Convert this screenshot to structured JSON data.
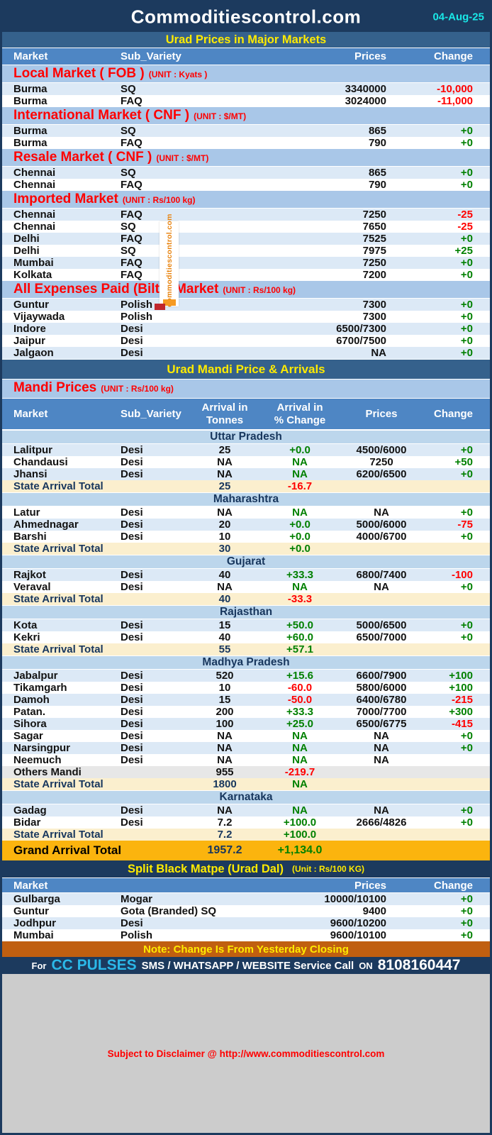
{
  "header": {
    "title": "Commoditiescontrol.com",
    "date": "04-Aug-25"
  },
  "colors": {
    "navy": "#1C3A5E",
    "band": "#35618C",
    "colhdr": "#4E86C4",
    "secbg": "#A9C7E8",
    "stateband": "#BCD6EC",
    "rowalt": "#DCE9F6",
    "cream": "#FBEFCE",
    "grayrow": "#E7E7E7",
    "amber": "#FBB40E",
    "noteband": "#C05F10",
    "graybar": "#CCCCCC",
    "yellow": "#FFEB00",
    "cyan": "#19E8E8",
    "cyan2": "#2BB8E8",
    "pos": "#008000",
    "neg": "#FF0000",
    "navytxt": "#17365D",
    "wmorange": "#E8820C"
  },
  "watermark": {
    "text": "commoditiescontrol.com"
  },
  "major_markets": {
    "title": "Urad Prices in Major Markets",
    "columns": {
      "market": "Market",
      "variety": "Sub_Variety",
      "prices": "Prices",
      "change": "Change"
    },
    "sections": [
      {
        "name": "Local Market ( FOB )",
        "unit": "(UNIT : Kyats )",
        "rows": [
          {
            "market": "Burma",
            "variety": "SQ",
            "price": "3340000",
            "change": "-10,000",
            "dir": "down"
          },
          {
            "market": "Burma",
            "variety": "FAQ",
            "price": "3024000",
            "change": "-11,000",
            "dir": "down"
          }
        ]
      },
      {
        "name": "International Market ( CNF )",
        "unit": "(UNIT : $/MT)",
        "rows": [
          {
            "market": "Burma",
            "variety": "SQ",
            "price": "865",
            "change": "+0",
            "dir": "up"
          },
          {
            "market": "Burma",
            "variety": "FAQ",
            "price": "790",
            "change": "+0",
            "dir": "up"
          }
        ]
      },
      {
        "name": "Resale Market  ( CNF )",
        "unit": "(UNIT : $/MT)",
        "rows": [
          {
            "market": "Chennai",
            "variety": "SQ",
            "price": "865",
            "change": "+0",
            "dir": "up"
          },
          {
            "market": "Chennai",
            "variety": "FAQ",
            "price": "790",
            "change": "+0",
            "dir": "up"
          }
        ]
      },
      {
        "name": "Imported Market",
        "unit": "(UNIT : Rs/100 kg)",
        "rows": [
          {
            "market": "Chennai",
            "variety": "FAQ",
            "price": "7250",
            "change": "-25",
            "dir": "down"
          },
          {
            "market": "Chennai",
            "variety": "SQ",
            "price": "7650",
            "change": "-25",
            "dir": "down"
          },
          {
            "market": "Delhi",
            "variety": "FAQ",
            "price": "7525",
            "change": "+0",
            "dir": "up"
          },
          {
            "market": "Delhi",
            "variety": "SQ",
            "price": "7975",
            "change": "+25",
            "dir": "up"
          },
          {
            "market": "Mumbai",
            "variety": "FAQ",
            "price": "7250",
            "change": "+0",
            "dir": "up"
          },
          {
            "market": "Kolkata",
            "variety": "FAQ",
            "price": "7200",
            "change": "+0",
            "dir": "up"
          }
        ]
      },
      {
        "name": "All Expenses Paid (Bilty) Market",
        "unit": "(UNIT : Rs/100 kg)",
        "rows": [
          {
            "market": "Guntur",
            "variety": "Polish",
            "price": "7300",
            "change": "+0",
            "dir": "up"
          },
          {
            "market": "Vijaywada",
            "variety": "Polish",
            "price": "7300",
            "change": "+0",
            "dir": "up"
          },
          {
            "market": "Indore",
            "variety": "Desi",
            "price": "6500/7300",
            "change": "+0",
            "dir": "up"
          },
          {
            "market": "Jaipur",
            "variety": "Desi",
            "price": "6700/7500",
            "change": "+0",
            "dir": "up"
          },
          {
            "market": "Jalgaon",
            "variety": "Desi",
            "price": "NA",
            "change": "+0",
            "dir": "up"
          }
        ]
      }
    ]
  },
  "mandi": {
    "band_title": "Urad Mandi Price & Arrivals",
    "section_title": "Mandi Prices",
    "unit": "(UNIT : Rs/100 kg)",
    "columns": {
      "market": "Market",
      "variety": "Sub_Variety",
      "arrival_l1": "Arrival in",
      "arrival_l2": "Tonnes",
      "pct_l1": "Arrival  in",
      "pct_l2": "% Change",
      "prices": "Prices",
      "change": "Change"
    },
    "states": [
      {
        "name": "Uttar Pradesh",
        "rows": [
          {
            "market": "Lalitpur",
            "variety": "Desi",
            "arrival": "25",
            "arrival_pct": "+0.0",
            "pct_dir": "up",
            "price": "4500/6000",
            "change": "+0",
            "dir": "up"
          },
          {
            "market": "Chandausi",
            "variety": "Desi",
            "arrival": "NA",
            "arrival_pct": "NA",
            "pct_dir": "up",
            "price": "7250",
            "change": "+50",
            "dir": "up"
          },
          {
            "market": "Jhansi",
            "variety": "Desi",
            "arrival": "NA",
            "arrival_pct": "NA",
            "pct_dir": "up",
            "price": "6200/6500",
            "change": "+0",
            "dir": "up"
          }
        ],
        "total": {
          "label": "State Arrival Total",
          "arrival": "25",
          "arrival_pct": "-16.7",
          "pct_dir": "down"
        }
      },
      {
        "name": "Maharashtra",
        "rows": [
          {
            "market": "Latur",
            "variety": "Desi",
            "arrival": "NA",
            "arrival_pct": "NA",
            "pct_dir": "up",
            "price": "NA",
            "change": "+0",
            "dir": "up"
          },
          {
            "market": "Ahmednagar",
            "variety": "Desi",
            "arrival": "20",
            "arrival_pct": "+0.0",
            "pct_dir": "up",
            "price": "5000/6000",
            "change": "-75",
            "dir": "down"
          },
          {
            "market": "Barshi",
            "variety": "Desi",
            "arrival": "10",
            "arrival_pct": "+0.0",
            "pct_dir": "up",
            "price": "4000/6700",
            "change": "+0",
            "dir": "up"
          }
        ],
        "total": {
          "label": "State Arrival Total",
          "arrival": "30",
          "arrival_pct": "+0.0",
          "pct_dir": "up"
        }
      },
      {
        "name": "Gujarat",
        "rows": [
          {
            "market": "Rajkot",
            "variety": "Desi",
            "arrival": "40",
            "arrival_pct": "+33.3",
            "pct_dir": "up",
            "price": "6800/7400",
            "change": "-100",
            "dir": "down"
          },
          {
            "market": "Veraval",
            "variety": "Desi",
            "arrival": "NA",
            "arrival_pct": "NA",
            "pct_dir": "up",
            "price": "NA",
            "change": "+0",
            "dir": "up"
          }
        ],
        "total": {
          "label": "State Arrival Total",
          "arrival": "40",
          "arrival_pct": "-33.3",
          "pct_dir": "down"
        }
      },
      {
        "name": "Rajasthan",
        "rows": [
          {
            "market": "Kota",
            "variety": "Desi",
            "arrival": "15",
            "arrival_pct": "+50.0",
            "pct_dir": "up",
            "price": "5000/6500",
            "change": "+0",
            "dir": "up"
          },
          {
            "market": "Kekri",
            "variety": "Desi",
            "arrival": "40",
            "arrival_pct": "+60.0",
            "pct_dir": "up",
            "price": "6500/7000",
            "change": "+0",
            "dir": "up"
          }
        ],
        "total": {
          "label": "State Arrival Total",
          "arrival": "55",
          "arrival_pct": "+57.1",
          "pct_dir": "up"
        }
      },
      {
        "name": "Madhya Pradesh",
        "rows": [
          {
            "market": "Jabalpur",
            "variety": "Desi",
            "arrival": "520",
            "arrival_pct": "+15.6",
            "pct_dir": "up",
            "price": "6600/7900",
            "change": "+100",
            "dir": "up"
          },
          {
            "market": "Tikamgarh",
            "variety": "Desi",
            "arrival": "10",
            "arrival_pct": "-60.0",
            "pct_dir": "down",
            "price": "5800/6000",
            "change": "+100",
            "dir": "up"
          },
          {
            "market": "Damoh",
            "variety": "Desi",
            "arrival": "15",
            "arrival_pct": "-50.0",
            "pct_dir": "down",
            "price": "6400/6780",
            "change": "-215",
            "dir": "down"
          },
          {
            "market": "Patan.",
            "variety": "Desi",
            "arrival": "200",
            "arrival_pct": "+33.3",
            "pct_dir": "up",
            "price": "7000/7700",
            "change": "+300",
            "dir": "up"
          },
          {
            "market": "Sihora",
            "variety": "Desi",
            "arrival": "100",
            "arrival_pct": "+25.0",
            "pct_dir": "up",
            "price": "6500/6775",
            "change": "-415",
            "dir": "down"
          },
          {
            "market": "Sagar",
            "variety": "Desi",
            "arrival": "NA",
            "arrival_pct": "NA",
            "pct_dir": "up",
            "price": "NA",
            "change": "+0",
            "dir": "up"
          },
          {
            "market": "Narsingpur",
            "variety": "Desi",
            "arrival": "NA",
            "arrival_pct": "NA",
            "pct_dir": "up",
            "price": "NA",
            "change": "+0",
            "dir": "up"
          },
          {
            "market": "Neemuch",
            "variety": "Desi",
            "arrival": "NA",
            "arrival_pct": "NA",
            "pct_dir": "up",
            "price": "NA",
            "change": "",
            "dir": null
          },
          {
            "market": "Others Mandi",
            "variety": "",
            "arrival": "955",
            "arrival_pct": "-219.7",
            "pct_dir": "down",
            "price": "",
            "change": "",
            "dir": null,
            "gray": true
          }
        ],
        "total": {
          "label": "State Arrival Total",
          "arrival": "1800",
          "arrival_pct": "NA",
          "pct_dir": "up"
        }
      },
      {
        "name": "Karnataka",
        "rows": [
          {
            "market": "Gadag",
            "variety": "Desi",
            "arrival": "NA",
            "arrival_pct": "NA",
            "pct_dir": "up",
            "price": "NA",
            "change": "+0",
            "dir": "up"
          },
          {
            "market": "Bidar",
            "variety": "Desi",
            "arrival": "7.2",
            "arrival_pct": "+100.0",
            "pct_dir": "up",
            "price": "2666/4826",
            "change": "+0",
            "dir": "up"
          }
        ],
        "total": {
          "label": "State Arrival Total",
          "arrival": "7.2",
          "arrival_pct": "+100.0",
          "pct_dir": "up"
        }
      }
    ],
    "grand_total": {
      "label": "Grand Arrival Total",
      "arrival": "1957.2",
      "arrival_pct": "+1,134.0"
    }
  },
  "split": {
    "title": "Split Black Matpe (Urad Dal)",
    "unit": "(Unit : Rs/100 KG)",
    "columns": {
      "market": "Market",
      "prices": "Prices",
      "change": "Change"
    },
    "rows": [
      {
        "market": "Gulbarga",
        "variety": "Mogar",
        "price": "10000/10100",
        "change": "+0",
        "dir": "up"
      },
      {
        "market": "Guntur",
        "variety": "Gota (Branded) SQ",
        "price": "9400",
        "change": "+0",
        "dir": "up"
      },
      {
        "market": "Jodhpur",
        "variety": "Desi",
        "price": "9600/10200",
        "change": "+0",
        "dir": "up"
      },
      {
        "market": "Mumbai",
        "variety": "Polish",
        "price": "9600/10100",
        "change": "+0",
        "dir": "up"
      }
    ]
  },
  "footer": {
    "note": "Note: Change Is From Yesterday Closing",
    "service_prefix": "For",
    "service_brand": "CC PULSES",
    "service_text": "SMS / WHATSAPP / WEBSITE Service Call",
    "service_on": "ON",
    "service_phone": "8108160447",
    "disclaimer": "Subject to Disclaimer @  http://www.commoditiescontrol.com"
  }
}
